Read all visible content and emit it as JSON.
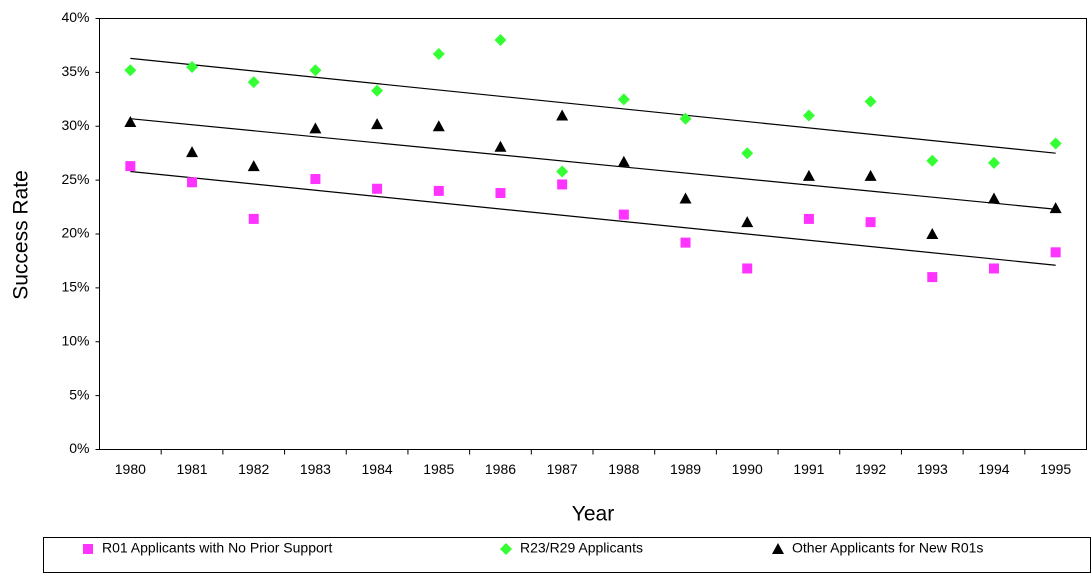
{
  "chart_data": {
    "type": "scatter",
    "x_label": "Year",
    "y_label": "Success Rate",
    "categories": [
      "1980",
      "1981",
      "1982",
      "1983",
      "1984",
      "1985",
      "1986",
      "1987",
      "1988",
      "1989",
      "1990",
      "1991",
      "1992",
      "1993",
      "1994",
      "1995"
    ],
    "ylim": [
      0,
      40
    ],
    "yticks": [
      {
        "value": 0,
        "label": "0%"
      },
      {
        "value": 5,
        "label": "5%"
      },
      {
        "value": 10,
        "label": "10%"
      },
      {
        "value": 15,
        "label": "15%"
      },
      {
        "value": 20,
        "label": "20%"
      },
      {
        "value": 25,
        "label": "25%"
      },
      {
        "value": 30,
        "label": "30%"
      },
      {
        "value": 35,
        "label": "35%"
      },
      {
        "value": 40,
        "label": "40%"
      }
    ],
    "legend": "bottom",
    "series": [
      {
        "name": "R01 Applicants with No Prior Support",
        "color": "#ff33ff",
        "marker": "square",
        "values": [
          26.3,
          24.8,
          21.4,
          25.1,
          24.2,
          24.0,
          23.8,
          24.6,
          21.8,
          19.2,
          16.8,
          21.4,
          21.1,
          16.0,
          16.8,
          18.3
        ],
        "trend": [
          25.8,
          17.1
        ]
      },
      {
        "name": "R23/R29 Applicants",
        "color": "#33ff33",
        "marker": "diamond",
        "values": [
          35.2,
          35.5,
          34.1,
          35.2,
          33.3,
          36.7,
          38.0,
          25.8,
          32.5,
          30.7,
          27.5,
          31.0,
          32.3,
          26.8,
          26.6,
          28.4
        ],
        "trend": [
          36.3,
          27.5
        ]
      },
      {
        "name": "Other Applicants for New R01s",
        "color": "#000000",
        "marker": "triangle",
        "values": [
          30.4,
          27.6,
          26.3,
          29.8,
          30.2,
          30.0,
          28.1,
          31.0,
          26.7,
          23.3,
          21.1,
          25.4,
          25.4,
          20.0,
          23.3,
          22.4
        ],
        "trend": [
          30.7,
          22.3
        ]
      }
    ]
  }
}
